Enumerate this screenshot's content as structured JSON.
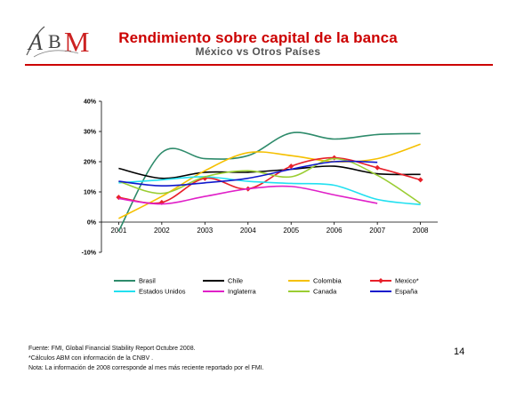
{
  "header": {
    "title": "Rendimiento sobre capital de la banca",
    "subtitle": "México vs Otros Países",
    "logo_text": "ABM"
  },
  "chart_data": {
    "type": "line",
    "x": [
      2001,
      2002,
      2003,
      2004,
      2005,
      2006,
      2007,
      2008
    ],
    "xlim": [
      2000.6,
      2008.4
    ],
    "ylim": [
      -10,
      40
    ],
    "yticks": [
      -10,
      0,
      10,
      20,
      30,
      40
    ],
    "ytick_labels": [
      "-10%",
      "0%",
      "10%",
      "20%",
      "30%",
      "40%"
    ],
    "xtick_labels": [
      "2001",
      "2002",
      "2003",
      "2004",
      "2005",
      "2006",
      "2007",
      "2008"
    ],
    "grid": false,
    "legend_position": "bottom",
    "series": [
      {
        "name": "Brasil",
        "color": "#2e8b6b",
        "marker": false,
        "values": [
          -3,
          23,
          21,
          22,
          29.5,
          27.5,
          29,
          29.3
        ]
      },
      {
        "name": "Chile",
        "color": "#000000",
        "marker": false,
        "values": [
          17.8,
          14.5,
          16.5,
          16.5,
          17.5,
          18.5,
          16,
          15.8
        ]
      },
      {
        "name": "Colombia",
        "color": "#f5c000",
        "marker": false,
        "values": [
          1.2,
          8.5,
          17,
          23,
          22,
          20,
          21,
          25.8
        ]
      },
      {
        "name": "Mexico*",
        "color": "#e8202a",
        "marker": true,
        "values": [
          8.2,
          6.5,
          14.5,
          11,
          18.5,
          21.3,
          18,
          14
        ]
      },
      {
        "name": "Estados Unidos",
        "color": "#22e0f0",
        "marker": false,
        "values": [
          13,
          14,
          15,
          13.5,
          12.8,
          12.2,
          7.5,
          5.8
        ]
      },
      {
        "name": "Inglaterra",
        "color": "#e020c8",
        "marker": false,
        "values": [
          7.8,
          6,
          8.5,
          11,
          11.8,
          9,
          6.2,
          null
        ]
      },
      {
        "name": "Canada",
        "color": "#9acd32",
        "marker": false,
        "values": [
          13.5,
          9.5,
          15,
          17,
          15,
          21,
          15.5,
          6.2
        ]
      },
      {
        "name": "España",
        "color": "#1018cc",
        "marker": false,
        "values": [
          13.5,
          12,
          13,
          14.5,
          17.5,
          20,
          19.8,
          null
        ]
      }
    ]
  },
  "footnotes": [
    "Fuente: FMI, Global Financial Stability Report Octubre  2008.",
    "*Cálculos ABM con información de la CNBV .",
    "Nota: La información de 2008 corresponde al mes más reciente reportado por el FMI."
  ],
  "page_number": "14"
}
